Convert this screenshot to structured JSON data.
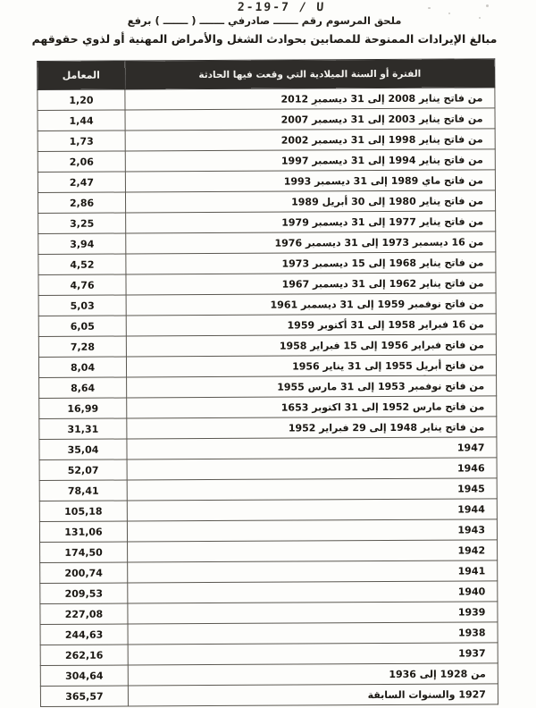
{
  "header": {
    "ref_number": "2-19-7 / U",
    "decree_line": "ملحق المرسوم رقم ـــــــ صادرفي ـــــــ ( ـــــــ ) برفع",
    "subtitle": "مبالغ الإيرادات الممنوحة للمصابين بحوادث الشغل والأمراض المهنية أو لذوي حقوقهم"
  },
  "table": {
    "column_headers": {
      "coefficient": "المعامل",
      "period": "الفترة أو السنة الميلادية التي وقعت فيها الحادثة"
    },
    "rows": [
      {
        "coefficient": "1,20",
        "period": "من فاتح يناير 2008 إلى 31 ديسمبر 2012"
      },
      {
        "coefficient": "1,44",
        "period": "من فاتح يناير 2003 إلى 31 ديسمبر 2007"
      },
      {
        "coefficient": "1,73",
        "period": "من فاتح يناير 1998 إلى 31 ديسمبر 2002"
      },
      {
        "coefficient": "2,06",
        "period": "من فاتح يناير 1994 إلى 31 ديسمبر 1997"
      },
      {
        "coefficient": "2,47",
        "period": "من فاتح ماي 1989 إلى 31 ديسمبر 1993"
      },
      {
        "coefficient": "2,86",
        "period": "من فاتح يناير 1980 إلى 30 أبريل 1989"
      },
      {
        "coefficient": "3,25",
        "period": "من فاتح يناير 1977 إلى 31 ديسمبر 1979"
      },
      {
        "coefficient": "3,94",
        "period": "من 16 ديسمبر 1973 إلى 31 ديسمبر 1976"
      },
      {
        "coefficient": "4,52",
        "period": "من فاتح يناير 1968 إلى 15 ديسمبر 1973"
      },
      {
        "coefficient": "4,76",
        "period": "من فاتح يناير 1962 إلى 31 ديسمبر 1967"
      },
      {
        "coefficient": "5,03",
        "period": "من فاتح نوفمبر 1959 إلى 31 ديسمبر 1961"
      },
      {
        "coefficient": "6,05",
        "period": "من 16 فبراير 1958 إلى 31 أكتوبر 1959"
      },
      {
        "coefficient": "7,28",
        "period": "من فاتح فبراير 1956 إلى 15 فبراير 1958"
      },
      {
        "coefficient": "8,04",
        "period": "من فاتح أبريل 1955 إلى 31 يناير 1956"
      },
      {
        "coefficient": "8,64",
        "period": "من فاتح نوفمبر 1953 إلى 31 مارس 1955"
      },
      {
        "coefficient": "16,99",
        "period": "من فاتح مارس 1952 إلى 31 اكتوبر 1653"
      },
      {
        "coefficient": "31,31",
        "period": "من فاتح يناير 1948 إلى 29 فبراير 1952"
      },
      {
        "coefficient": "35,04",
        "period": "1947"
      },
      {
        "coefficient": "52,07",
        "period": "1946"
      },
      {
        "coefficient": "78,41",
        "period": "1945"
      },
      {
        "coefficient": "105,18",
        "period": "1944"
      },
      {
        "coefficient": "131,06",
        "period": "1943"
      },
      {
        "coefficient": "174,50",
        "period": "1942"
      },
      {
        "coefficient": "200,74",
        "period": "1941"
      },
      {
        "coefficient": "209,53",
        "period": "1940"
      },
      {
        "coefficient": "227,08",
        "period": "1939"
      },
      {
        "coefficient": "244,63",
        "period": "1938"
      },
      {
        "coefficient": "262,16",
        "period": "1937"
      },
      {
        "coefficient": "304,64",
        "period": "من 1928 إلى 1936"
      },
      {
        "coefficient": "365,57",
        "period": "1927 والسنوات السابقة"
      }
    ]
  },
  "colors": {
    "header_bg": "#2e2c29",
    "header_text": "#f5f4f0",
    "border": "#5a5750",
    "text": "#1a1712",
    "page_bg": "#fdfdfb"
  }
}
